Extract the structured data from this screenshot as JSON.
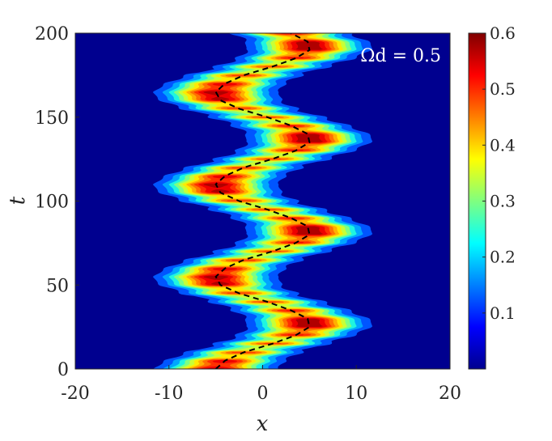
{
  "chart_data": {
    "type": "contourf",
    "xlabel": "x",
    "ylabel": "t",
    "xlim": [
      -20,
      20
    ],
    "ylim": [
      0,
      200
    ],
    "x_ticks": [
      -20,
      -10,
      0,
      10,
      20
    ],
    "x_tick_labels": [
      "-20",
      "-10",
      "0",
      "10",
      "20"
    ],
    "y_ticks": [
      0,
      50,
      100,
      150,
      200
    ],
    "y_tick_labels": [
      "0",
      "50",
      "100",
      "150",
      "200"
    ],
    "annotation": "Ωd = 0.5",
    "colormap": "jet",
    "colorbar": {
      "range": [
        0,
        0.6
      ],
      "ticks": [
        0.1,
        0.2,
        0.3,
        0.4,
        0.5,
        0.6
      ],
      "tick_labels": [
        "0.1",
        "0.2",
        "0.3",
        "0.4",
        "0.5",
        "0.6"
      ]
    },
    "levels": [
      0.05,
      0.1,
      0.15,
      0.2,
      0.25,
      0.3,
      0.35,
      0.4,
      0.45,
      0.5,
      0.55
    ],
    "level_colors": [
      "#0055ff",
      "#00a6ff",
      "#1ff5e0",
      "#7dff82",
      "#c8ff37",
      "#ffea00",
      "#ffb000",
      "#ff7000",
      "#ff3000",
      "#ee0000",
      "#b00000"
    ],
    "background_color": "#00008f",
    "trajectory": {
      "style": "dashed",
      "color": "#000000",
      "t": [
        0,
        5,
        10,
        15,
        20,
        25,
        30,
        35,
        40,
        45,
        50,
        55,
        60,
        65,
        70,
        75,
        80,
        85,
        90,
        95,
        100,
        105,
        110,
        115,
        120,
        125,
        130,
        135,
        140,
        145,
        150,
        155,
        160,
        165,
        170,
        175,
        180,
        185,
        190,
        195,
        200
      ],
      "x": [
        -5,
        -4,
        -2,
        1,
        3.5,
        5,
        4.8,
        3,
        0.5,
        -2.5,
        -4.5,
        -5,
        -4,
        -2,
        1,
        3.5,
        5,
        4.8,
        3,
        0.5,
        -2.5,
        -4.5,
        -5,
        -4,
        -2,
        1,
        3.5,
        5,
        4.8,
        3,
        0.5,
        -2.5,
        -4.5,
        -5,
        -4,
        -2,
        1,
        3.5,
        5,
        4.8,
        3
      ]
    }
  }
}
